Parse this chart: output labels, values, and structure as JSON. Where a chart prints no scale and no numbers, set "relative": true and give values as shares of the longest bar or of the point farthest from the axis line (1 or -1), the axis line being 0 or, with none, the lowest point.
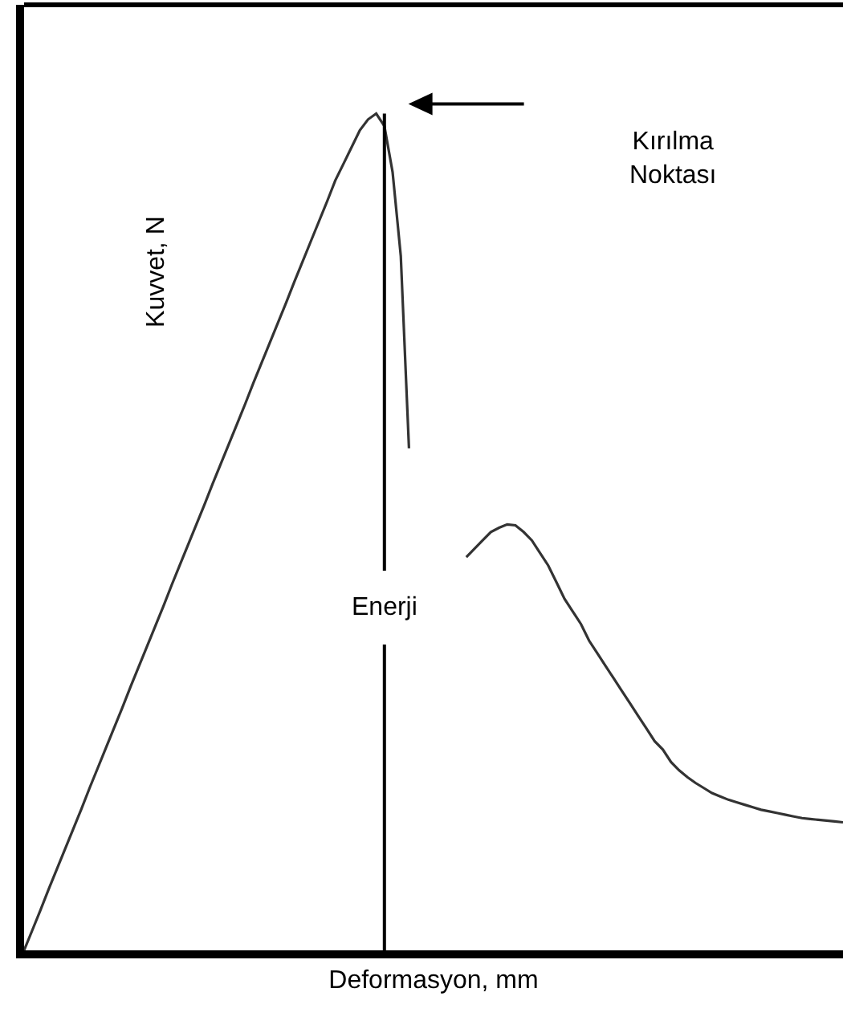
{
  "chart_data": {
    "type": "line",
    "relative": true,
    "xlabel": "Deformasyon, mm",
    "ylabel": "Kuvvet, N",
    "categories": [
      null,
      null,
      null,
      null,
      null,
      null,
      null,
      null,
      null,
      null,
      null,
      null,
      null,
      null,
      null,
      null,
      null,
      null,
      null,
      null,
      null,
      null,
      null,
      null,
      null,
      null,
      null,
      null,
      null,
      null,
      null,
      null,
      null,
      null,
      null,
      null,
      null,
      null,
      null,
      null,
      null,
      null,
      null,
      null,
      null,
      null,
      null,
      null,
      null,
      null,
      null,
      null,
      null,
      null,
      null,
      null,
      null,
      null,
      null,
      null,
      null,
      null,
      null,
      null,
      null,
      null,
      null,
      null,
      null,
      null,
      null,
      null,
      null,
      null,
      null,
      null,
      null,
      null,
      null,
      null,
      null,
      null,
      null,
      null,
      null,
      null,
      null,
      null,
      null,
      null,
      null,
      null,
      null,
      null,
      null,
      null,
      null,
      null,
      null,
      null,
      null
    ],
    "series": [
      {
        "color": "#333333",
        "values": [
          0,
          0.024,
          0.048,
          0.073,
          0.097,
          0.121,
          0.145,
          0.169,
          0.194,
          0.218,
          0.242,
          0.266,
          0.29,
          0.315,
          0.339,
          0.363,
          0.387,
          0.411,
          0.436,
          0.46,
          0.484,
          0.508,
          0.532,
          0.557,
          0.581,
          0.605,
          0.629,
          0.653,
          0.678,
          0.702,
          0.726,
          0.75,
          0.774,
          0.799,
          0.823,
          0.847,
          0.871,
          0.895,
          0.92,
          0.94,
          0.96,
          0.98,
          0.993,
          1.0,
          0.985,
          0.93,
          0.83,
          0.6,
          null,
          null,
          null,
          null,
          null,
          null,
          null,
          null,
          null,
          null,
          null,
          null,
          null,
          null,
          null,
          null,
          null,
          null,
          null,
          null,
          null,
          null,
          null,
          null,
          null,
          null,
          null,
          null,
          null,
          null,
          null,
          null,
          null,
          null,
          null,
          null,
          null,
          null,
          null,
          null,
          null,
          null,
          null,
          null,
          null,
          null,
          null,
          null,
          null,
          null,
          null,
          null,
          null
        ]
      },
      {
        "color": "#333333",
        "values": [
          null,
          null,
          null,
          null,
          null,
          null,
          null,
          null,
          null,
          null,
          null,
          null,
          null,
          null,
          null,
          null,
          null,
          null,
          null,
          null,
          null,
          null,
          null,
          null,
          null,
          null,
          null,
          null,
          null,
          null,
          null,
          null,
          null,
          null,
          null,
          null,
          null,
          null,
          null,
          null,
          null,
          null,
          null,
          null,
          null,
          null,
          null,
          null,
          null,
          null,
          null,
          null,
          null,
          null,
          0.47,
          0.48,
          0.49,
          0.5,
          0.505,
          0.509,
          0.508,
          0.5,
          0.49,
          0.475,
          0.46,
          0.44,
          0.42,
          0.405,
          0.39,
          0.37,
          0.355,
          0.34,
          0.325,
          0.31,
          0.295,
          0.28,
          0.265,
          0.25,
          0.24,
          0.225,
          0.215,
          0.207,
          0.2,
          0.194,
          0.188,
          0.184,
          0.18,
          0.177,
          0.174,
          0.171,
          0.168,
          0.166,
          0.164,
          0.162,
          0.16,
          0.158,
          0.157,
          0.156,
          0.155,
          0.154,
          0.153
        ]
      }
    ],
    "marker": "none",
    "line_style": "solid",
    "ref_lines": [
      {
        "axis": "x",
        "label": "Enerji",
        "color": "#000000"
      }
    ],
    "annotations": [
      "Kırılma\nNoktası"
    ]
  }
}
